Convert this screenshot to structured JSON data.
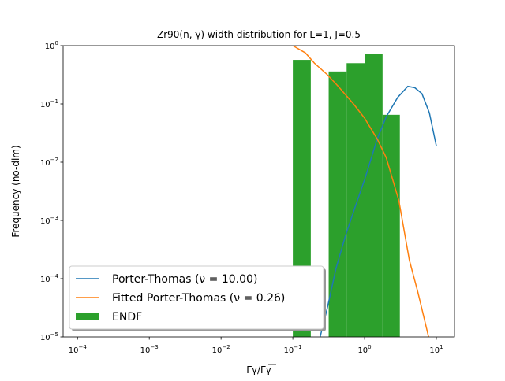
{
  "chart_data": {
    "type": "line",
    "title": "Zr90(n, γ) width distribution for L=1, J=0.5",
    "xlabel": "Γγ/Γγ",
    "ylabel": "Frequency (no-dim)",
    "xscale": "log",
    "yscale": "log",
    "xlim": [
      6.3e-05,
      17.9
    ],
    "ylim": [
      1e-05,
      1
    ],
    "xticks": [
      {
        "value": 0.0001,
        "label": "10",
        "exponent": "−4"
      },
      {
        "value": 0.001,
        "label": "10",
        "exponent": "−3"
      },
      {
        "value": 0.01,
        "label": "10",
        "exponent": "−2"
      },
      {
        "value": 0.1,
        "label": "10",
        "exponent": "−1"
      },
      {
        "value": 1,
        "label": "10",
        "exponent": "0"
      },
      {
        "value": 10,
        "label": "10",
        "exponent": "1"
      }
    ],
    "yticks": [
      {
        "value": 1e-05,
        "label": "10",
        "exponent": "−5"
      },
      {
        "value": 0.0001,
        "label": "10",
        "exponent": "−4"
      },
      {
        "value": 0.001,
        "label": "10",
        "exponent": "−3"
      },
      {
        "value": 0.01,
        "label": "10",
        "exponent": "−2"
      },
      {
        "value": 0.1,
        "label": "10",
        "exponent": "−1"
      },
      {
        "value": 1,
        "label": "10",
        "exponent": "0"
      }
    ],
    "legend": "lower left",
    "series": [
      {
        "name": "Porter-Thomas (ν = 10.00)",
        "type": "line",
        "color": "#1f77b4",
        "x": [
          0.24,
          0.3,
          0.4,
          0.54,
          0.75,
          1,
          1.5,
          2,
          2.9,
          4,
          5,
          6.3,
          8,
          10
        ],
        "values": [
          1e-05,
          3e-05,
          0.00015,
          0.00054,
          0.0018,
          0.005,
          0.025,
          0.06,
          0.13,
          0.2,
          0.19,
          0.15,
          0.07,
          0.019
        ]
      },
      {
        "name": "Fitted Porter-Thomas (ν = 0.26)",
        "type": "line",
        "color": "#ff7f0e",
        "x": [
          0.1,
          0.15,
          0.2,
          0.3,
          0.43,
          0.7,
          1,
          1.5,
          2,
          3,
          4.2,
          5.5,
          6.3,
          7.8
        ],
        "values": [
          1,
          0.75,
          0.5,
          0.32,
          0.2,
          0.1,
          0.057,
          0.025,
          0.012,
          0.0022,
          0.00021,
          6e-05,
          3e-05,
          1e-05
        ]
      },
      {
        "name": "ENDF",
        "type": "histogram",
        "color": "#2ca02c",
        "bins": [
          0.1,
          0.178,
          0.316,
          0.562,
          1,
          1.78,
          3.1
        ],
        "values": [
          0.57,
          0,
          0.36,
          0.5,
          0.73,
          0.065
        ]
      }
    ]
  }
}
